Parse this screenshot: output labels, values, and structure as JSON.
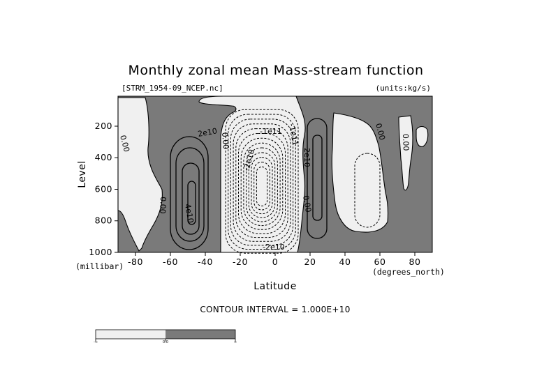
{
  "chart_data": {
    "type": "heatmap",
    "title": "Monthly zonal mean Mass-stream function",
    "subtitle_left": "[STRM_1954-09_NCEP.nc]",
    "subtitle_right": "(units:kg/s)",
    "xlabel": "Latitude",
    "ylabel": "Level",
    "x_unit": "(degrees_north)",
    "y_unit": "(millibar)",
    "xlim": [
      -90,
      90
    ],
    "ylim": [
      1000,
      10
    ],
    "x_ticks": [
      "-80",
      "-60",
      "-40",
      "-20",
      "0",
      "20",
      "40",
      "60",
      "80"
    ],
    "x_tick_values": [
      -80,
      -60,
      -40,
      -20,
      0,
      20,
      40,
      60,
      80
    ],
    "y_ticks": [
      "200",
      "400",
      "600",
      "800",
      "1000"
    ],
    "y_tick_values": [
      200,
      400,
      600,
      800,
      1000
    ],
    "contour_interval": "CONTOUR INTERVAL = 1.000E+10",
    "shading": {
      "positive_color": "#7a7a7a",
      "negative_color": "#f0f0f0"
    },
    "colorbar": {
      "labels": [
        "-∞",
        "0.0",
        "∞"
      ],
      "colors": [
        "#f0f0f0",
        "#7a7a7a"
      ]
    },
    "contour_labels": [
      "0.00",
      "0.00",
      "0.00",
      "2e10",
      "4e10",
      "-1e11",
      "-2e10",
      "2e10",
      "0.00",
      "0.00",
      "0.00",
      "-2e10",
      "-1e11"
    ],
    "cells": [
      {
        "name": "southern-positive-cell",
        "center_lat": -45,
        "center_level": 600,
        "sign": "positive",
        "peak": 40000000000.0
      },
      {
        "name": "tropical-negative-cell",
        "center_lat": 0,
        "center_level": 500,
        "sign": "negative",
        "peak": -130000000000.0
      },
      {
        "name": "northern-positive-cell",
        "center_lat": 23,
        "center_level": 500,
        "sign": "positive",
        "peak": 20000000000.0
      },
      {
        "name": "northern-midlat-negative-cell",
        "center_lat": 48,
        "center_level": 500,
        "sign": "negative",
        "peak": -10000000000.0
      }
    ]
  }
}
